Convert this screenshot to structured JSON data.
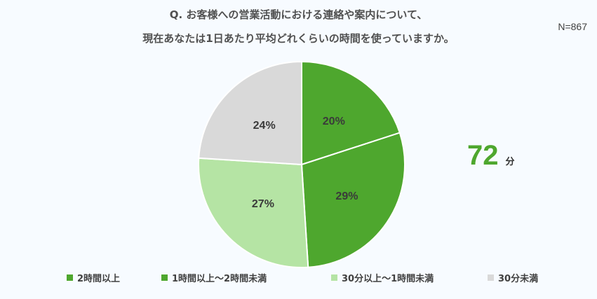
{
  "title": {
    "line1": "Q.  お客様への営業活動における連絡や案内について、",
    "line2": "現在あなたは1日あたり平均どれくらいの時間を使っていますか。"
  },
  "sample_size": "N=867",
  "average": {
    "value": "72",
    "unit": "分"
  },
  "chart_data": {
    "type": "pie",
    "title": "Q.  お客様への営業活動における連絡や案内について、現在あなたは1日あたり平均どれくらいの時間を使っていますか。",
    "categories": [
      "2時間以上",
      "1時間以上～2時間未満",
      "30分以上～1時間未満",
      "30分未満"
    ],
    "values": [
      20,
      29,
      27,
      24
    ],
    "labels": [
      "20%",
      "29%",
      "27%",
      "24%"
    ],
    "colors": [
      "#4ea72e",
      "#4ea72e",
      "#b5e4a4",
      "#d9d9d9"
    ],
    "start_angle": "12 o'clock",
    "direction": "clockwise",
    "legend_position": "bottom"
  }
}
